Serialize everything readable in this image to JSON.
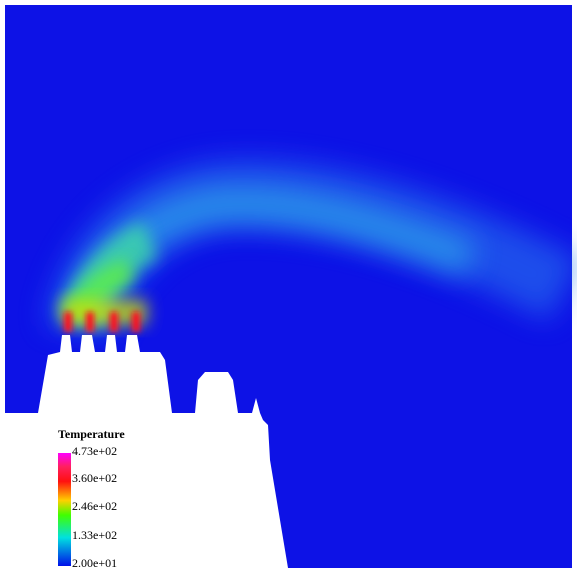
{
  "legend": {
    "title": "Temperature",
    "labels": [
      "4.73e+02",
      "3.60e+02",
      "2.46e+02",
      "1.33e+02",
      "2.00e+01"
    ]
  }
}
